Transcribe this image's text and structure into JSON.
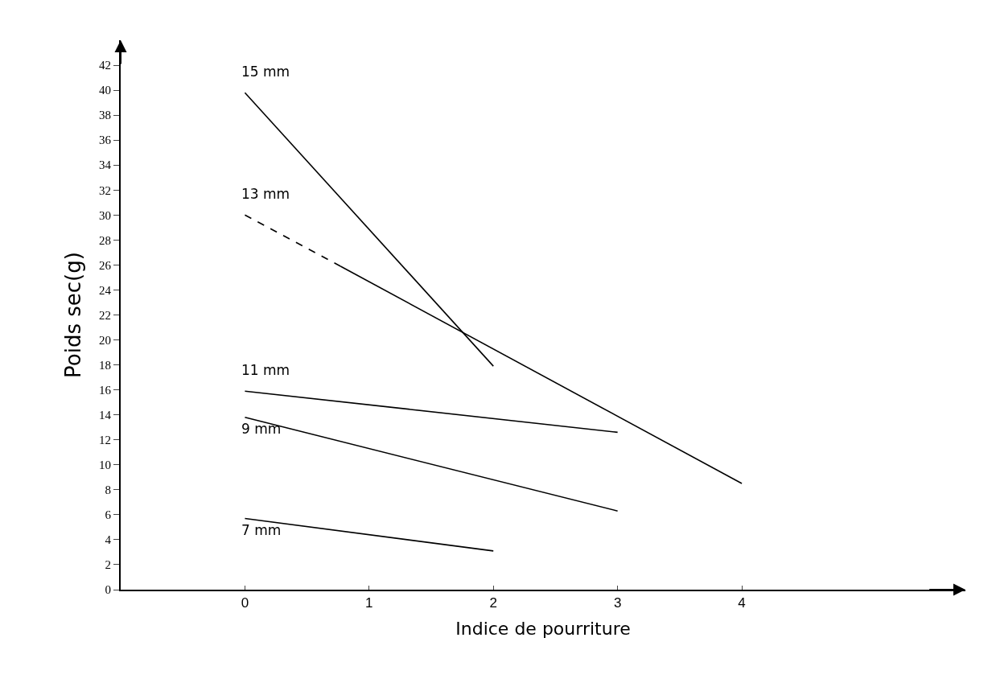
{
  "chart_data": {
    "type": "line",
    "xlabel": "Indice de pourriture",
    "ylabel": "Poids sec(g)",
    "series": [
      {
        "name": "15 mm",
        "color": "#000000",
        "x": [
          0,
          2
        ],
        "values": [
          39.8,
          17.9
        ]
      },
      {
        "name": "13 mm",
        "color": "#000000",
        "x": [
          0,
          0.77
        ],
        "values": [
          30,
          25.9
        ],
        "line_style": "dashed"
      },
      {
        "color": "#000000",
        "x": [
          0.77,
          4
        ],
        "values": [
          25.9,
          8.5
        ]
      },
      {
        "name": "11 mm",
        "color": "#000000",
        "x": [
          0,
          3
        ],
        "values": [
          15.9,
          12.6
        ]
      },
      {
        "name": "9 mm",
        "color": "#000000",
        "x": [
          0,
          3
        ],
        "values": [
          13.8,
          6.3
        ]
      },
      {
        "name": "7 mm",
        "color": "#000000",
        "x": [
          0,
          2
        ],
        "values": [
          5.7,
          3.1
        ]
      }
    ],
    "xlim": [
      -1,
      5.8
    ],
    "ylim": [
      0,
      44
    ],
    "xticks": [
      0,
      1,
      2,
      3,
      4
    ],
    "yticks": [
      0,
      2,
      4,
      6,
      8,
      10,
      12,
      14,
      16,
      18,
      20,
      22,
      24,
      26,
      28,
      30,
      32,
      34,
      36,
      38,
      40,
      42
    ],
    "legend": false,
    "line_style": "solid",
    "marker": "none"
  }
}
